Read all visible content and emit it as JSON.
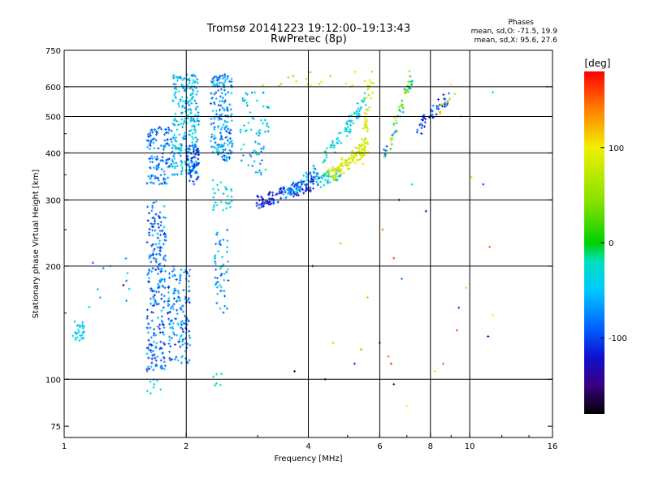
{
  "chart_data": {
    "type": "scatter",
    "title": "Tromsø 20141223 19:12:00–19:13:43",
    "subtitle": "RwPretec (8p)",
    "xlabel": "Frequency [MHz]",
    "ylabel": "Stationary phase Virtual Height [km]",
    "x_scale": "log",
    "y_scale": "log",
    "xlim": [
      1,
      16
    ],
    "ylim": [
      70,
      750
    ],
    "x_ticks": [
      1,
      2,
      4,
      6,
      8,
      10,
      16
    ],
    "y_ticks": [
      75,
      100,
      200,
      300,
      400,
      500,
      600,
      750
    ],
    "grid": true,
    "colorbar": {
      "label": "[deg]",
      "ticks": [
        100,
        0,
        -100
      ],
      "range": [
        -180,
        180
      ]
    },
    "phase_stats": {
      "heading": "Phases",
      "o_line": "mean, sd,O: -71.5, 19.9",
      "x_line": "mean, sd,X: 95.6, 27.6"
    },
    "clusters": [
      {
        "x": [
          1.05,
          1.12
        ],
        "y": [
          125,
          145
        ],
        "phase": [
          -60,
          -30
        ],
        "n": 30
      },
      {
        "x": [
          1.15,
          1.5
        ],
        "y": [
          135,
          210
        ],
        "phase": [
          -90,
          -40
        ],
        "n": 10
      },
      {
        "x": [
          1.6,
          1.78
        ],
        "y": [
          105,
          300
        ],
        "phase": [
          -120,
          -50
        ],
        "n": 230
      },
      {
        "x": [
          1.8,
          2.05
        ],
        "y": [
          110,
          200
        ],
        "phase": [
          -110,
          -40
        ],
        "n": 150
      },
      {
        "x": [
          1.6,
          1.85
        ],
        "y": [
          330,
          470
        ],
        "phase": [
          -110,
          -50
        ],
        "n": 130
      },
      {
        "x": [
          1.85,
          2.15
        ],
        "y": [
          350,
          650
        ],
        "phase": [
          -80,
          -20
        ],
        "n": 260
      },
      {
        "x": [
          2.0,
          2.15
        ],
        "y": [
          330,
          420
        ],
        "phase": [
          -120,
          -80
        ],
        "n": 60
      },
      {
        "x": [
          2.3,
          2.6
        ],
        "y": [
          380,
          650
        ],
        "phase": [
          -110,
          -30
        ],
        "n": 190
      },
      {
        "x": [
          2.35,
          2.55
        ],
        "y": [
          150,
          250
        ],
        "phase": [
          -100,
          -40
        ],
        "n": 50
      },
      {
        "x": [
          2.3,
          2.6
        ],
        "y": [
          280,
          340
        ],
        "phase": [
          -60,
          -20
        ],
        "n": 30
      },
      {
        "x": [
          2.7,
          3.2
        ],
        "y": [
          350,
          580
        ],
        "phase": [
          -80,
          -20
        ],
        "n": 70
      },
      {
        "x": [
          1.6,
          1.75
        ],
        "y": [
          90,
          100
        ],
        "phase": [
          -50,
          -20
        ],
        "n": 8
      },
      {
        "x": [
          2.3,
          2.45
        ],
        "y": [
          95,
          105
        ],
        "phase": [
          -40,
          -10
        ],
        "n": 6
      },
      {
        "x": [
          3.0,
          5.8
        ],
        "y": [
          600,
          660
        ],
        "phase": [
          40,
          110
        ],
        "n": 20
      }
    ],
    "traces": [
      {
        "x0": 3.0,
        "x1": 4.2,
        "y0": 295,
        "y1": 335,
        "phase": [
          -130,
          -90
        ],
        "n": 120
      },
      {
        "x0": 3.5,
        "x1": 4.2,
        "y0": 310,
        "y1": 360,
        "phase": [
          -90,
          -30
        ],
        "n": 50
      },
      {
        "x0": 4.2,
        "x1": 4.8,
        "y0": 335,
        "y1": 355,
        "phase": [
          -60,
          -10
        ],
        "n": 50
      },
      {
        "x0": 4.5,
        "x1": 5.6,
        "y0": 345,
        "y1": 420,
        "phase": [
          60,
          110
        ],
        "n": 110
      },
      {
        "x0": 4.4,
        "x1": 5.6,
        "y0": 390,
        "y1": 560,
        "phase": [
          -60,
          -10
        ],
        "n": 70
      },
      {
        "x0": 5.4,
        "x1": 5.75,
        "y0": 380,
        "y1": 640,
        "phase": [
          60,
          110
        ],
        "n": 50
      },
      {
        "x0": 6.2,
        "x1": 7.2,
        "y0": 400,
        "y1": 640,
        "phase": [
          -100,
          100
        ],
        "n": 60
      },
      {
        "x0": 7.4,
        "x1": 8.8,
        "y0": 460,
        "y1": 560,
        "phase": [
          -130,
          -70
        ],
        "n": 50
      },
      {
        "x0": 8.5,
        "x1": 9.2,
        "y0": 520,
        "y1": 600,
        "phase": [
          60,
          140
        ],
        "n": 10
      }
    ],
    "scattered": [
      {
        "x": 6.3,
        "y": 115,
        "phase": 150
      },
      {
        "x": 6.4,
        "y": 110,
        "phase": 170
      },
      {
        "x": 6.5,
        "y": 210,
        "phase": 160
      },
      {
        "x": 5.6,
        "y": 165,
        "phase": 120
      },
      {
        "x": 5.4,
        "y": 120,
        "phase": 130
      },
      {
        "x": 7.0,
        "y": 85,
        "phase": 100
      },
      {
        "x": 8.2,
        "y": 105,
        "phase": 90
      },
      {
        "x": 9.3,
        "y": 135,
        "phase": 160
      },
      {
        "x": 11.4,
        "y": 148,
        "phase": 100
      },
      {
        "x": 11.2,
        "y": 225,
        "phase": 150
      },
      {
        "x": 10.1,
        "y": 345,
        "phase": 110
      },
      {
        "x": 6.8,
        "y": 185,
        "phase": -80
      },
      {
        "x": 4.8,
        "y": 230,
        "phase": 40
      },
      {
        "x": 4.6,
        "y": 125,
        "phase": 60
      },
      {
        "x": 3.7,
        "y": 105,
        "phase": -160
      },
      {
        "x": 4.4,
        "y": 100,
        "phase": -150
      },
      {
        "x": 5.2,
        "y": 110,
        "phase": -120
      },
      {
        "x": 6.0,
        "y": 125,
        "phase": -140
      },
      {
        "x": 6.5,
        "y": 97,
        "phase": -150
      },
      {
        "x": 6.7,
        "y": 300,
        "phase": -130
      },
      {
        "x": 7.8,
        "y": 280,
        "phase": -120
      },
      {
        "x": 9.4,
        "y": 155,
        "phase": -110
      },
      {
        "x": 11.1,
        "y": 130,
        "phase": -120
      },
      {
        "x": 15.5,
        "y": 600,
        "phase": 20
      },
      {
        "x": 11.4,
        "y": 580,
        "phase": -40
      },
      {
        "x": 10.8,
        "y": 330,
        "phase": -100
      },
      {
        "x": 9.5,
        "y": 500,
        "phase": 10
      },
      {
        "x": 7.2,
        "y": 330,
        "phase": -20
      },
      {
        "x": 4.1,
        "y": 200,
        "phase": -150
      },
      {
        "x": 6.1,
        "y": 250,
        "phase": 140
      },
      {
        "x": 8.6,
        "y": 110,
        "phase": 150
      },
      {
        "x": 9.8,
        "y": 175,
        "phase": 70
      },
      {
        "x": 1.4,
        "y": 178,
        "phase": -150
      },
      {
        "x": 1.3,
        "y": 200,
        "phase": -40
      }
    ]
  }
}
